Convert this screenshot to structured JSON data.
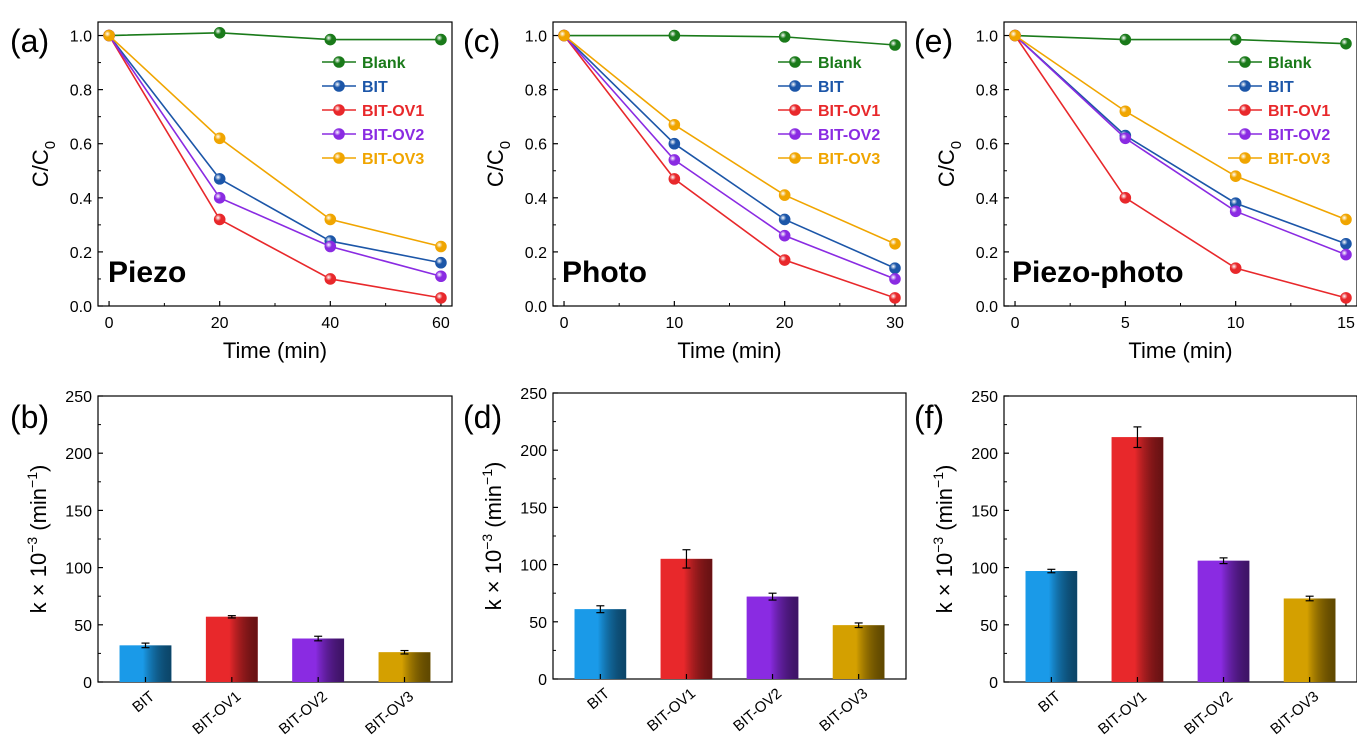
{
  "chart_data": [
    {
      "panel": "(a)",
      "type": "line",
      "label": "Piezo",
      "xlabel": "Time (min)",
      "ylabel": "C/C",
      "ylabel_sub": "0",
      "xlim": [
        -2,
        62
      ],
      "ylim": [
        0,
        1.05
      ],
      "xticks": [
        0,
        20,
        40,
        60
      ],
      "yticks": [
        0.0,
        0.2,
        0.4,
        0.6,
        0.8,
        1.0
      ],
      "x": [
        0,
        20,
        40,
        60
      ],
      "series": [
        {
          "name": "Blank",
          "color": "#1a7a1a",
          "values": [
            1.0,
            1.01,
            0.985,
            0.985
          ]
        },
        {
          "name": "BIT",
          "color": "#1c56a8",
          "values": [
            1.0,
            0.47,
            0.24,
            0.16
          ]
        },
        {
          "name": "BIT-OV1",
          "color": "#e8282b",
          "values": [
            1.0,
            0.32,
            0.1,
            0.03
          ]
        },
        {
          "name": "BIT-OV2",
          "color": "#8a2be2",
          "values": [
            1.0,
            0.4,
            0.22,
            0.11
          ]
        },
        {
          "name": "BIT-OV3",
          "color": "#f0a500",
          "values": [
            1.0,
            0.62,
            0.32,
            0.22
          ]
        }
      ]
    },
    {
      "panel": "(c)",
      "type": "line",
      "label": "Photo",
      "xlabel": "Time (min)",
      "ylabel": "C/C",
      "ylabel_sub": "0",
      "xlim": [
        -1,
        31
      ],
      "ylim": [
        0,
        1.05
      ],
      "xticks": [
        0,
        10,
        20,
        30
      ],
      "yticks": [
        0.0,
        0.2,
        0.4,
        0.6,
        0.8,
        1.0
      ],
      "x": [
        0,
        10,
        20,
        30
      ],
      "series": [
        {
          "name": "Blank",
          "color": "#1a7a1a",
          "values": [
            1.0,
            1.0,
            0.995,
            0.965
          ]
        },
        {
          "name": "BIT",
          "color": "#1c56a8",
          "values": [
            1.0,
            0.6,
            0.32,
            0.14
          ]
        },
        {
          "name": "BIT-OV1",
          "color": "#e8282b",
          "values": [
            1.0,
            0.47,
            0.17,
            0.03
          ]
        },
        {
          "name": "BIT-OV2",
          "color": "#8a2be2",
          "values": [
            1.0,
            0.54,
            0.26,
            0.1
          ]
        },
        {
          "name": "BIT-OV3",
          "color": "#f0a500",
          "values": [
            1.0,
            0.67,
            0.41,
            0.23
          ]
        }
      ]
    },
    {
      "panel": "(e)",
      "type": "line",
      "label": "Piezo-photo",
      "xlabel": "Time (min)",
      "ylabel": "C/C",
      "ylabel_sub": "0",
      "xlim": [
        -0.5,
        15.5
      ],
      "ylim": [
        0,
        1.05
      ],
      "xticks": [
        0,
        5,
        10,
        15
      ],
      "yticks": [
        0.0,
        0.2,
        0.4,
        0.6,
        0.8,
        1.0
      ],
      "x": [
        0,
        5,
        10,
        15
      ],
      "series": [
        {
          "name": "Blank",
          "color": "#1a7a1a",
          "values": [
            1.0,
            0.985,
            0.985,
            0.97
          ]
        },
        {
          "name": "BIT",
          "color": "#1c56a8",
          "values": [
            1.0,
            0.63,
            0.38,
            0.23
          ]
        },
        {
          "name": "BIT-OV1",
          "color": "#e8282b",
          "values": [
            1.0,
            0.4,
            0.14,
            0.03
          ]
        },
        {
          "name": "BIT-OV2",
          "color": "#8a2be2",
          "values": [
            1.0,
            0.62,
            0.35,
            0.19
          ]
        },
        {
          "name": "BIT-OV3",
          "color": "#f0a500",
          "values": [
            1.0,
            0.72,
            0.48,
            0.32
          ]
        }
      ]
    },
    {
      "panel": "(b)",
      "type": "bar",
      "ylabel": "k × 10",
      "ylabel_exp": "−3",
      "ylabel_unit": " (min",
      "ylabel_unit_exp": "−1",
      "ylabel_close": ")",
      "ylim": [
        0,
        250
      ],
      "yticks": [
        0,
        50,
        100,
        150,
        200,
        250
      ],
      "categories": [
        "BIT",
        "BIT-OV1",
        "BIT-OV2",
        "BIT-OV3"
      ],
      "values": [
        32,
        57,
        38,
        26
      ],
      "errors": [
        2,
        1,
        2,
        1.5
      ],
      "colors": [
        "#1a9ae8",
        "#e8282b",
        "#8a2be2",
        "#d4a000"
      ]
    },
    {
      "panel": "(d)",
      "type": "bar",
      "ylabel": "k × 10",
      "ylabel_exp": "−3",
      "ylabel_unit": " (min",
      "ylabel_unit_exp": "−1",
      "ylabel_close": ")",
      "ylim": [
        0,
        250
      ],
      "yticks": [
        0,
        50,
        100,
        150,
        200,
        250
      ],
      "categories": [
        "BIT",
        "BIT-OV1",
        "BIT-OV2",
        "BIT-OV3"
      ],
      "values": [
        61,
        105,
        72,
        47
      ],
      "errors": [
        3,
        8,
        3,
        2
      ],
      "colors": [
        "#1a9ae8",
        "#e8282b",
        "#8a2be2",
        "#d4a000"
      ]
    },
    {
      "panel": "(f)",
      "type": "bar",
      "ylabel": "k × 10",
      "ylabel_exp": "−3",
      "ylabel_unit": " (min",
      "ylabel_unit_exp": "−1",
      "ylabel_close": ")",
      "ylim": [
        0,
        250
      ],
      "yticks": [
        0,
        50,
        100,
        150,
        200,
        250
      ],
      "categories": [
        "BIT",
        "BIT-OV1",
        "BIT-OV2",
        "BIT-OV3"
      ],
      "values": [
        97,
        214,
        106,
        73
      ],
      "errors": [
        1.5,
        9,
        2.5,
        2
      ],
      "colors": [
        "#1a9ae8",
        "#e8282b",
        "#8a2be2",
        "#d4a000"
      ]
    }
  ]
}
